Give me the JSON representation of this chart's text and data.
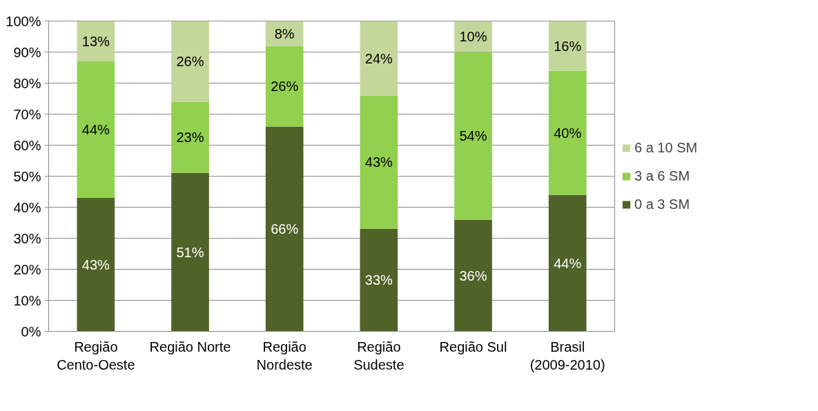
{
  "chart_data": {
    "type": "bar",
    "stacked": true,
    "categories": [
      "Região Cento-Oeste",
      "Região Norte",
      "Região Nordeste",
      "Região Sudeste",
      "Região Sul",
      "Brasil (2009-2010)"
    ],
    "series": [
      {
        "name": "0 a 3 SM",
        "color": "#4f6228",
        "values": [
          43,
          51,
          66,
          33,
          36,
          44
        ],
        "value_labels": [
          "43%",
          "51%",
          "66%",
          "33%",
          "36%",
          "44%"
        ]
      },
      {
        "name": "3 a 6 SM",
        "color": "#92d050",
        "values": [
          44,
          23,
          26,
          43,
          54,
          40
        ],
        "value_labels": [
          "44%",
          "23%",
          "26%",
          "43%",
          "54%",
          "40%"
        ]
      },
      {
        "name": "6 a 10 SM",
        "color": "#c4d79b",
        "values": [
          13,
          26,
          8,
          24,
          10,
          16
        ],
        "value_labels": [
          "13%",
          "26%",
          "8%",
          "24%",
          "10%",
          "16%"
        ]
      }
    ],
    "ylim": [
      0,
      100
    ],
    "yticks": [
      {
        "value": 0,
        "label": "0%"
      },
      {
        "value": 10,
        "label": "10%"
      },
      {
        "value": 20,
        "label": "20%"
      },
      {
        "value": 30,
        "label": "30%"
      },
      {
        "value": 40,
        "label": "40%"
      },
      {
        "value": 50,
        "label": "50%"
      },
      {
        "value": 60,
        "label": "60%"
      },
      {
        "value": 70,
        "label": "70%"
      },
      {
        "value": 80,
        "label": "80%"
      },
      {
        "value": 90,
        "label": "90%"
      },
      {
        "value": 100,
        "label": "100%"
      }
    ],
    "grid": "y",
    "legend": "right"
  }
}
